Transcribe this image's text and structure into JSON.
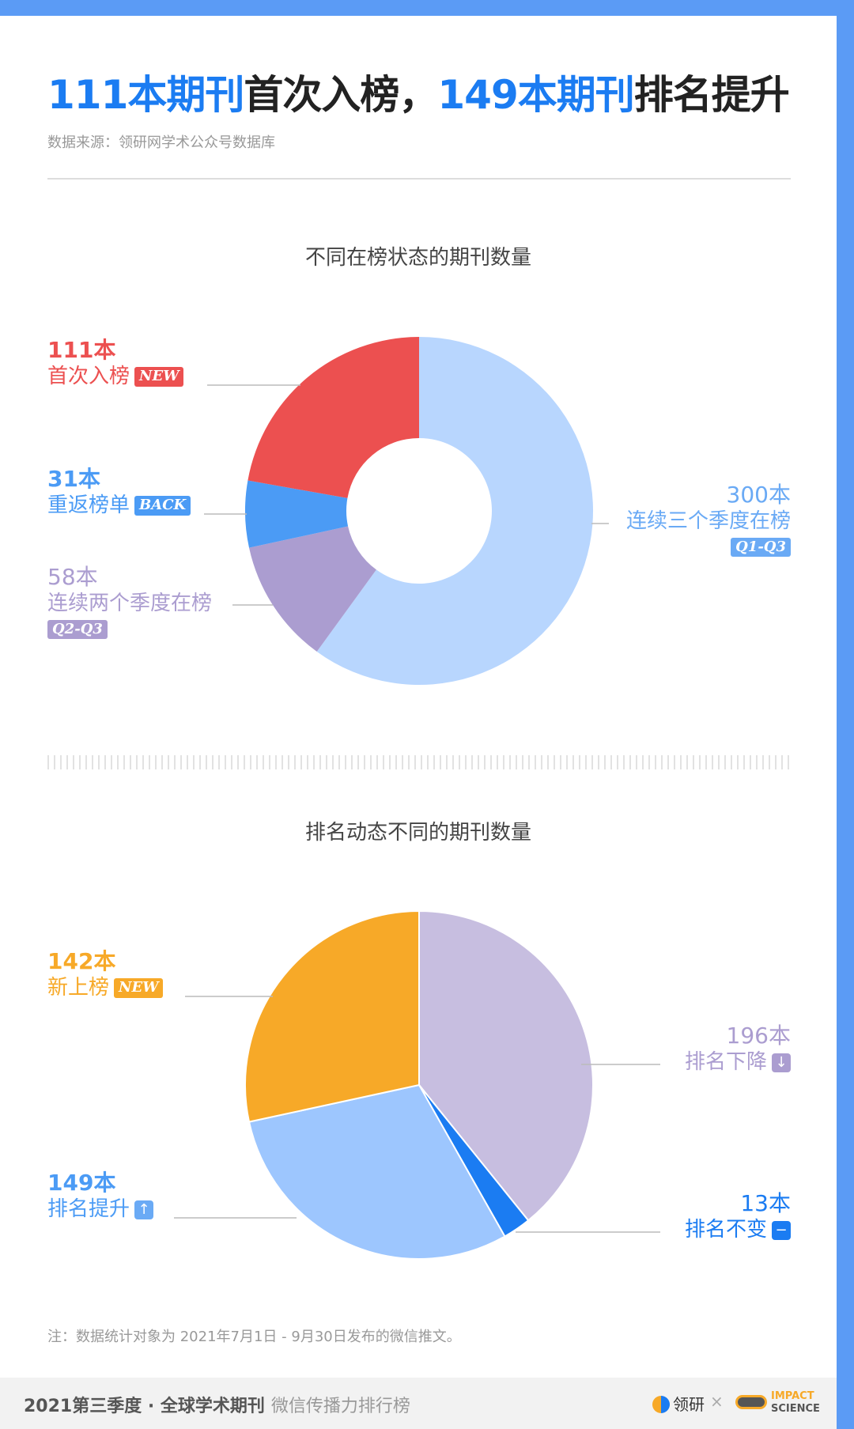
{
  "header": {
    "title_hl1": "111本期刊",
    "title_mid": "首次入榜，",
    "title_hl2": "149本期刊",
    "title_end": "排名提升",
    "source": "数据来源：领研网学术公众号数据库"
  },
  "colors": {
    "new": "#ec5050",
    "back": "#4b9bf5",
    "q2q3": "#ab9dd0",
    "q1q3": "#b8d6fe",
    "rank_new": "#f7a928",
    "rank_up": "#9dc6fe",
    "rank_same": "#1b7cf2",
    "rank_down": "#c7bee0"
  },
  "chart_data": [
    {
      "type": "pie",
      "variant": "donut",
      "title": "不同在榜状态的期刊数量",
      "categories": [
        "连续三个季度在榜",
        "连续两个季度在榜",
        "重返榜单",
        "首次入榜"
      ],
      "values": [
        300,
        58,
        31,
        111
      ],
      "labels": {
        "new": {
          "num": "111本",
          "name": "首次入榜",
          "tag": "NEW"
        },
        "back": {
          "num": "31本",
          "name": "重返榜单",
          "tag": "BACK"
        },
        "q2q3": {
          "num": "58本",
          "name": "连续两个季度在榜",
          "tag": "Q2-Q3"
        },
        "q1q3": {
          "num": "300本",
          "name": "连续三个季度在榜",
          "tag": "Q1-Q3"
        }
      }
    },
    {
      "type": "pie",
      "title": "排名动态不同的期刊数量",
      "categories": [
        "排名下降",
        "排名不变",
        "排名提升",
        "新上榜"
      ],
      "values": [
        196,
        13,
        149,
        142
      ],
      "labels": {
        "new": {
          "num": "142本",
          "name": "新上榜",
          "tag": "NEW"
        },
        "up": {
          "num": "149本",
          "name": "排名提升",
          "icon": "arrow-up-icon"
        },
        "down": {
          "num": "196本",
          "name": "排名下降",
          "icon": "arrow-down-icon"
        },
        "same": {
          "num": "13本",
          "name": "排名不变",
          "icon": "minus-icon"
        }
      }
    }
  ],
  "note": "注：数据统计对象为 2021年7月1日 - 9月30日发布的微信推文。",
  "footer": {
    "series_title": "2021第三季度 · 全球学术期刊",
    "series_sub": "微信传播力排行榜",
    "brand1": "领研",
    "times": "×",
    "brand2_line1": "IMPACT",
    "brand2_line2": "SCIENCE"
  }
}
